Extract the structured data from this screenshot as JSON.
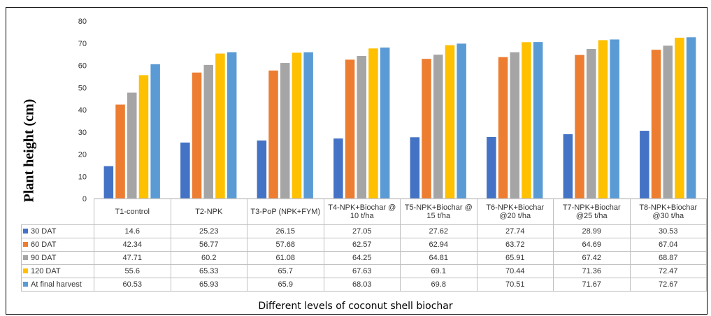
{
  "chart_data": {
    "type": "bar",
    "ylabel": "Plant height (cm)",
    "xlabel": "Different levels of coconut shell biochar",
    "ylim": [
      0,
      80
    ],
    "yticks": [
      0,
      10,
      20,
      30,
      40,
      50,
      60,
      70,
      80
    ],
    "grid": false,
    "legend": "data-table",
    "categories": [
      "T1-control",
      "T2-NPK",
      "T3-PoP (NPK+FYM)",
      "T4-NPK+Biochar @ 10 t/ha",
      "T5-NPK+Biochar @ 15 t/ha",
      "T6-NPK+Biochar @20 t/ha",
      "T7-NPK+Biochar @25 t/ha",
      "T8-NPK+Biochar @30 t/ha"
    ],
    "series": [
      {
        "name": "30 DAT",
        "color": "#4472C4",
        "values": [
          14.6,
          25.23,
          26.15,
          27.05,
          27.62,
          27.74,
          28.99,
          30.53
        ]
      },
      {
        "name": "60 DAT",
        "color": "#ED7D31",
        "values": [
          42.34,
          56.77,
          57.68,
          62.57,
          62.94,
          63.72,
          64.69,
          67.04
        ]
      },
      {
        "name": "90 DAT",
        "color": "#A5A5A5",
        "values": [
          47.71,
          60.2,
          61.08,
          64.25,
          64.81,
          65.91,
          67.42,
          68.87
        ]
      },
      {
        "name": "120 DAT",
        "color": "#FFC000",
        "values": [
          55.6,
          65.33,
          65.7,
          67.63,
          69.1,
          70.44,
          71.36,
          72.47
        ]
      },
      {
        "name": "At final harvest",
        "color": "#5B9BD5",
        "values": [
          60.53,
          65.93,
          65.9,
          68.03,
          69.8,
          70.51,
          71.67,
          72.67
        ]
      }
    ]
  }
}
